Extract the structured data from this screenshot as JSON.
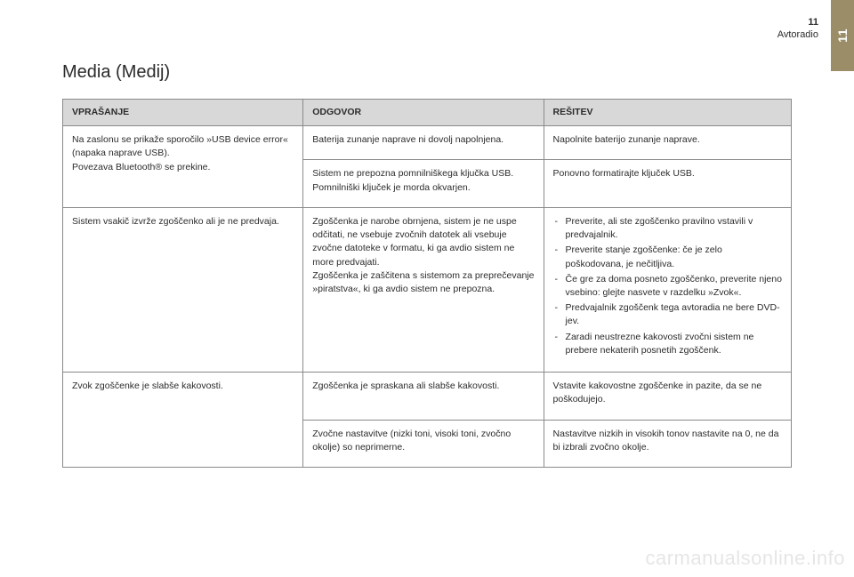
{
  "side_tab": "11",
  "header": {
    "chapter_num": "11",
    "chapter_name": "Avtoradio"
  },
  "title": "Media (Medij)",
  "table": {
    "headers": [
      "VPRAŠANJE",
      "ODGOVOR",
      "REŠITEV"
    ],
    "rows": [
      {
        "q": "Na zaslonu se prikaže sporočilo »USB device error« (napaka naprave USB).\nPovezava Bluetooth® se prekine.",
        "a1": "Baterija zunanje naprave ni dovolj napolnjena.",
        "r1": "Napolnite baterijo zunanje naprave.",
        "a2": "Sistem ne prepozna pomnilniškega ključka USB. Pomnilniški ključek je morda okvarjen.",
        "r2": "Ponovno formatirajte ključek USB."
      },
      {
        "q": "Sistem vsakič izvrže zgoščenko ali je ne predvaja.",
        "a": "Zgoščenka je narobe obrnjena, sistem je ne uspe odčitati, ne vsebuje zvočnih datotek ali vsebuje zvočne datoteke v formatu, ki ga avdio sistem ne more predvajati.\nZgoščenka je zaščitena s sistemom za preprečevanje »piratstva«, ki ga avdio sistem ne prepozna.",
        "r_list": [
          "Preverite, ali ste zgoščenko pravilno vstavili v predvajalnik.",
          "Preverite stanje zgoščenke: če je zelo poškodovana, je nečitljiva.",
          "Če gre za doma posneto zgoščenko, preverite njeno vsebino: glejte nasvete v razdelku »Zvok«.",
          "Predvajalnik zgoščenk tega avtoradia ne bere DVD-jev.",
          "Zaradi neustrezne kakovosti zvočni sistem ne prebere nekaterih posnetih zgoščenk."
        ]
      },
      {
        "q": "Zvok zgoščenke je slabše kakovosti.",
        "a1": "Zgoščenka je spraskana ali slabše kakovosti.",
        "r1": "Vstavite kakovostne zgoščenke in pazite, da se ne poškodujejo.",
        "a2": "Zvočne nastavitve (nizki toni, visoki toni, zvočno okolje) so neprimerne.",
        "r2": "Nastavitve nizkih in visokih tonov nastavite na 0, ne da bi izbrali zvočno okolje."
      }
    ]
  },
  "watermark": "carmanualsonline.info"
}
